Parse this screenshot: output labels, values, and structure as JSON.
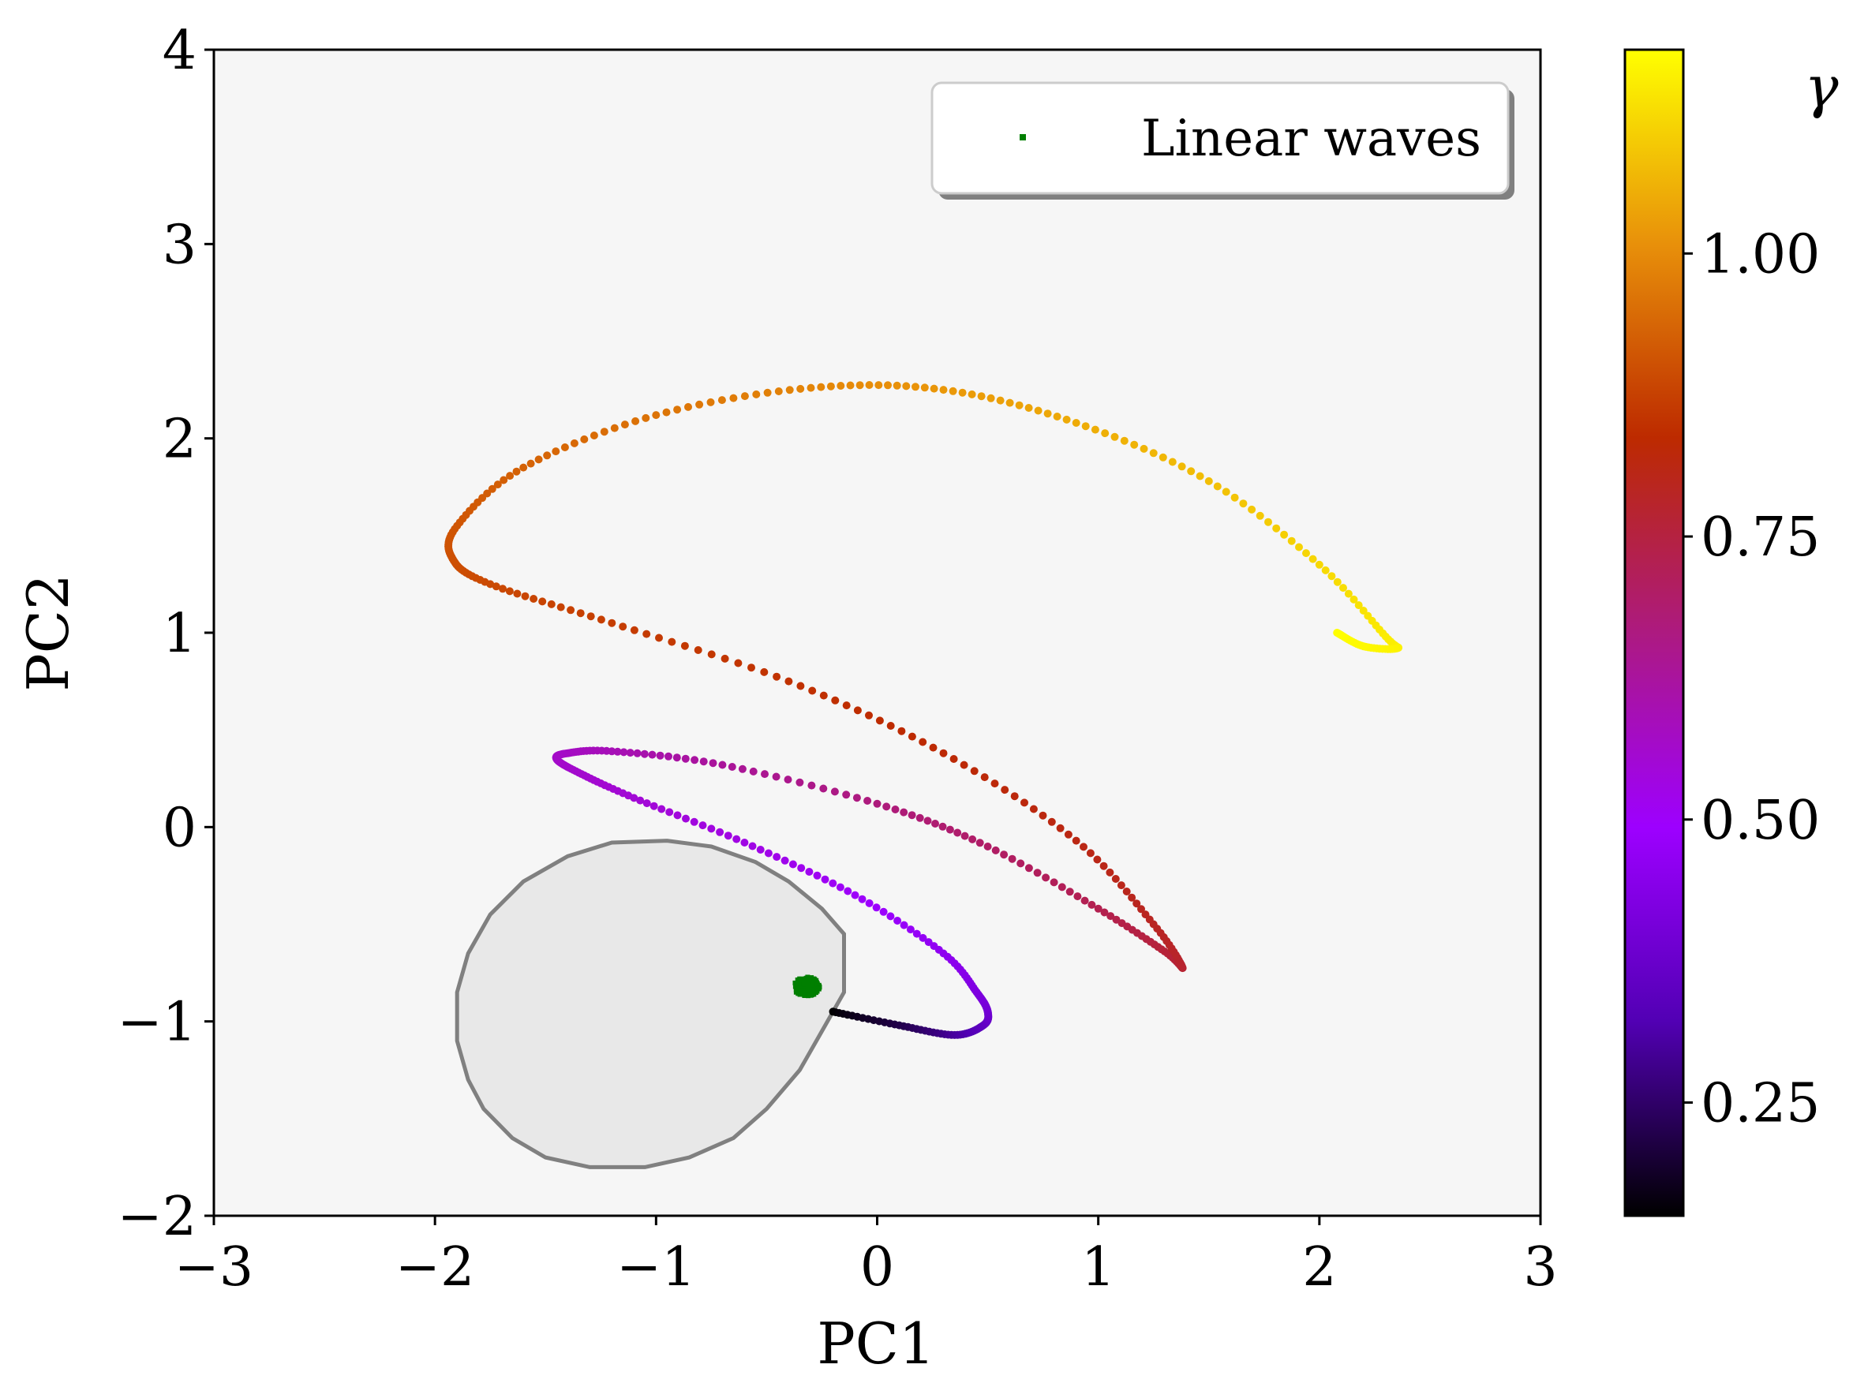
{
  "chart_data": {
    "type": "scatter",
    "title": "",
    "xlabel": "PC1",
    "ylabel": "PC2",
    "xlim": [
      -3,
      3
    ],
    "ylim": [
      -2,
      4
    ],
    "xticks": [
      -3,
      -2,
      -1,
      0,
      1,
      2,
      3
    ],
    "yticks": [
      -2,
      -1,
      0,
      1,
      2,
      3,
      4
    ],
    "grid": false,
    "plot_background": "#f6f6f6",
    "legend": {
      "placement": "top-right",
      "entries": [
        "Linear waves"
      ]
    },
    "colormap": "gnuplot",
    "colorbar": {
      "label": "γ",
      "range": [
        0.15,
        1.18
      ],
      "ticks": [
        0.25,
        0.5,
        0.75,
        1.0
      ],
      "tick_labels": [
        "0.25",
        "0.50",
        "0.75",
        "1.00"
      ],
      "stops": [
        "#000000",
        "#5200b4",
        "#9d00ff",
        "#ad1a80",
        "#bd2a00",
        "#e8900a",
        "#ffff00"
      ]
    },
    "shaded_region": {
      "fill": "#e8e8e8",
      "edge": "#808080",
      "polygon": [
        [
          -0.15,
          -0.55
        ],
        [
          -0.15,
          -0.85
        ],
        [
          -0.25,
          -1.05
        ],
        [
          -0.35,
          -1.25
        ],
        [
          -0.5,
          -1.45
        ],
        [
          -0.65,
          -1.6
        ],
        [
          -0.85,
          -1.7
        ],
        [
          -1.05,
          -1.75
        ],
        [
          -1.3,
          -1.75
        ],
        [
          -1.5,
          -1.7
        ],
        [
          -1.65,
          -1.6
        ],
        [
          -1.78,
          -1.45
        ],
        [
          -1.85,
          -1.3
        ],
        [
          -1.9,
          -1.1
        ],
        [
          -1.9,
          -0.85
        ],
        [
          -1.85,
          -0.65
        ],
        [
          -1.75,
          -0.45
        ],
        [
          -1.6,
          -0.28
        ],
        [
          -1.4,
          -0.15
        ],
        [
          -1.2,
          -0.08
        ],
        [
          -0.95,
          -0.07
        ],
        [
          -0.75,
          -0.1
        ],
        [
          -0.55,
          -0.18
        ],
        [
          -0.4,
          -0.28
        ],
        [
          -0.25,
          -0.42
        ]
      ]
    },
    "trajectory": {
      "name": "",
      "knots": [
        [
          -0.2,
          -0.95,
          0.15
        ],
        [
          0.1,
          -1.02,
          0.22
        ],
        [
          0.35,
          -1.07,
          0.3
        ],
        [
          0.48,
          -1.02,
          0.35
        ],
        [
          0.5,
          -0.95,
          0.39
        ],
        [
          0.45,
          -0.85,
          0.42
        ],
        [
          0.3,
          -0.65,
          0.46
        ],
        [
          -0.1,
          -0.35,
          0.5
        ],
        [
          -0.6,
          -0.08,
          0.53
        ],
        [
          -1.1,
          0.15,
          0.55
        ],
        [
          -1.35,
          0.28,
          0.56
        ],
        [
          -1.45,
          0.35,
          0.565
        ],
        [
          -1.4,
          0.38,
          0.57
        ],
        [
          -1.2,
          0.39,
          0.59
        ],
        [
          -0.7,
          0.32,
          0.63
        ],
        [
          0.0,
          0.12,
          0.67
        ],
        [
          0.5,
          -0.1,
          0.7
        ],
        [
          1.0,
          -0.42,
          0.73
        ],
        [
          1.3,
          -0.64,
          0.76
        ],
        [
          1.38,
          -0.72,
          0.77
        ],
        [
          1.25,
          -0.5,
          0.79
        ],
        [
          0.9,
          -0.07,
          0.81
        ],
        [
          0.3,
          0.38,
          0.83
        ],
        [
          -0.4,
          0.75,
          0.85
        ],
        [
          -1.2,
          1.05,
          0.87
        ],
        [
          -1.75,
          1.25,
          0.89
        ],
        [
          -1.92,
          1.38,
          0.9
        ],
        [
          -1.9,
          1.55,
          0.91
        ],
        [
          -1.6,
          1.85,
          0.93
        ],
        [
          -1.0,
          2.12,
          0.96
        ],
        [
          -0.3,
          2.26,
          0.99
        ],
        [
          0.3,
          2.25,
          1.02
        ],
        [
          0.9,
          2.08,
          1.05
        ],
        [
          1.5,
          1.78,
          1.08
        ],
        [
          2.0,
          1.35,
          1.12
        ],
        [
          2.3,
          0.98,
          1.15
        ],
        [
          2.35,
          0.92,
          1.16
        ],
        [
          2.2,
          0.93,
          1.17
        ],
        [
          2.08,
          1.0,
          1.18
        ]
      ]
    },
    "linear_waves": {
      "name": "Linear waves",
      "color": "#007f00",
      "center": [
        -0.32,
        -0.82
      ],
      "spread": [
        0.06,
        0.05
      ],
      "count": 150
    }
  }
}
